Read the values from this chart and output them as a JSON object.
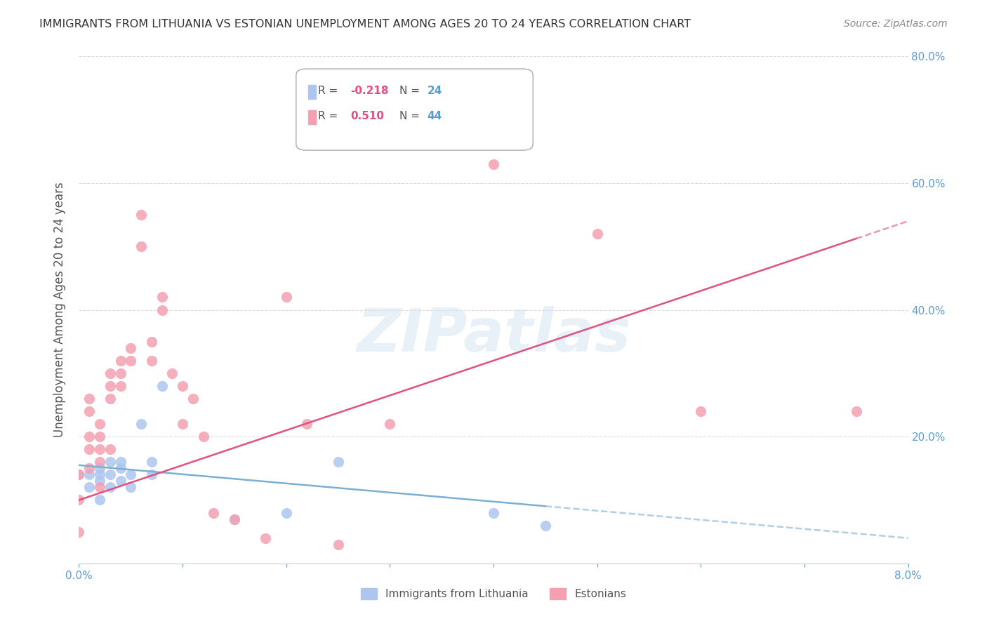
{
  "title": "IMMIGRANTS FROM LITHUANIA VS ESTONIAN UNEMPLOYMENT AMONG AGES 20 TO 24 YEARS CORRELATION CHART",
  "source": "Source: ZipAtlas.com",
  "xlabel_bottom": "",
  "ylabel": "Unemployment Among Ages 20 to 24 years",
  "x_min": 0.0,
  "x_max": 0.08,
  "y_min": 0.0,
  "y_max": 0.8,
  "x_ticks": [
    0.0,
    0.01,
    0.02,
    0.03,
    0.04,
    0.05,
    0.06,
    0.07,
    0.08
  ],
  "x_tick_labels": [
    "0.0%",
    "",
    "",
    "",
    "",
    "",
    "",
    "",
    "8.0%"
  ],
  "y_ticks": [
    0.0,
    0.2,
    0.4,
    0.6,
    0.8
  ],
  "y_tick_labels_left": [
    "",
    "",
    "",
    "",
    ""
  ],
  "y_tick_labels_right": [
    "",
    "20.0%",
    "40.0%",
    "60.0%",
    "80.0%"
  ],
  "series": [
    {
      "name": "Immigrants from Lithuania",
      "color": "#aec6ef",
      "R": -0.218,
      "N": 24,
      "points_x": [
        0.0,
        0.001,
        0.001,
        0.002,
        0.002,
        0.002,
        0.002,
        0.003,
        0.003,
        0.003,
        0.004,
        0.004,
        0.004,
        0.005,
        0.005,
        0.006,
        0.007,
        0.007,
        0.008,
        0.015,
        0.02,
        0.025,
        0.04,
        0.045
      ],
      "points_y": [
        0.14,
        0.14,
        0.12,
        0.15,
        0.13,
        0.14,
        0.1,
        0.16,
        0.14,
        0.12,
        0.15,
        0.13,
        0.16,
        0.14,
        0.12,
        0.22,
        0.16,
        0.14,
        0.28,
        0.07,
        0.08,
        0.16,
        0.08,
        0.06
      ],
      "trend_x": [
        0.0,
        0.08
      ],
      "trend_y": [
        0.155,
        0.04
      ]
    },
    {
      "name": "Estonians",
      "color": "#f4a0b0",
      "R": 0.51,
      "N": 44,
      "points_x": [
        0.0,
        0.0,
        0.0,
        0.001,
        0.001,
        0.001,
        0.001,
        0.001,
        0.002,
        0.002,
        0.002,
        0.002,
        0.002,
        0.003,
        0.003,
        0.003,
        0.003,
        0.004,
        0.004,
        0.004,
        0.005,
        0.005,
        0.006,
        0.006,
        0.007,
        0.007,
        0.008,
        0.008,
        0.009,
        0.01,
        0.01,
        0.011,
        0.012,
        0.013,
        0.015,
        0.018,
        0.02,
        0.022,
        0.025,
        0.03,
        0.04,
        0.05,
        0.06,
        0.075
      ],
      "points_y": [
        0.14,
        0.1,
        0.05,
        0.26,
        0.24,
        0.2,
        0.18,
        0.15,
        0.22,
        0.2,
        0.18,
        0.16,
        0.12,
        0.3,
        0.28,
        0.26,
        0.18,
        0.32,
        0.3,
        0.28,
        0.34,
        0.32,
        0.55,
        0.5,
        0.35,
        0.32,
        0.42,
        0.4,
        0.3,
        0.28,
        0.22,
        0.26,
        0.2,
        0.08,
        0.07,
        0.04,
        0.42,
        0.22,
        0.03,
        0.22,
        0.63,
        0.52,
        0.24,
        0.24
      ],
      "trend_x": [
        0.0,
        0.08
      ],
      "trend_y": [
        0.1,
        0.54
      ]
    }
  ],
  "background_color": "#ffffff",
  "grid_color": "#cccccc",
  "title_color": "#333333",
  "source_color": "#888888",
  "tick_color": "#5b9bd5",
  "legend_box_color_lithuania": "#aec6ef",
  "legend_box_color_estonians": "#f4a0b0",
  "legend_R_color_lithuania": "#e05080",
  "legend_R_color_estonians": "#e05080",
  "legend_N_color": "#5b9bd5",
  "watermark_text": "ZIPatlas",
  "watermark_color": "#d0e4f0",
  "watermark_alpha": 0.5
}
